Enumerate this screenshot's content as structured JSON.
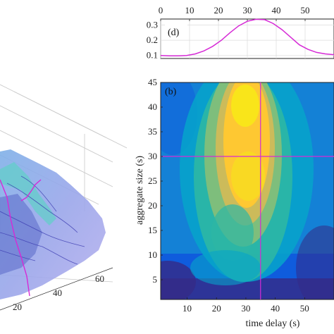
{
  "chart_data": [
    {
      "type": "line",
      "panel_label": "(d)",
      "x_ticks": [
        "0",
        "10",
        "20",
        "30",
        "40",
        "50"
      ],
      "y_ticks": [
        "0.1",
        "0.2",
        "0.3"
      ],
      "xlim": [
        0,
        60
      ],
      "ylim": [
        0.08,
        0.34
      ],
      "grid": true,
      "series": [
        {
          "color": "#d62ad6",
          "x": [
            0,
            3,
            6,
            9,
            12,
            15,
            18,
            21,
            24,
            27,
            30,
            33,
            36,
            39,
            42,
            45,
            48,
            51,
            54,
            57,
            60
          ],
          "values": [
            0.1,
            0.097,
            0.097,
            0.1,
            0.11,
            0.13,
            0.16,
            0.2,
            0.25,
            0.295,
            0.325,
            0.338,
            0.336,
            0.31,
            0.27,
            0.22,
            0.17,
            0.14,
            0.12,
            0.11,
            0.105
          ]
        }
      ]
    },
    {
      "type": "heatmap",
      "panel_label": "(b)",
      "xlabel": "time delay (s)",
      "ylabel": "aggregate size (s)",
      "x_ticks": [
        "10",
        "20",
        "30",
        "40",
        "50"
      ],
      "y_ticks": [
        "5",
        "10",
        "15",
        "20",
        "25",
        "30",
        "35",
        "40",
        "45"
      ],
      "xlim": [
        1,
        60
      ],
      "ylim": [
        1,
        45
      ],
      "crosshair": {
        "x": 35,
        "y": 30,
        "color": "#d62ad6"
      },
      "colormap": [
        "#352a87",
        "#0f5cdd",
        "#1481d6",
        "#06a4ca",
        "#2eb7a4",
        "#87bf77",
        "#d1bb59",
        "#fec832",
        "#f9fb0e"
      ]
    },
    {
      "type": "surface",
      "x_ticks": [
        "20",
        "40",
        "60"
      ],
      "line_color": "#d62ad6"
    }
  ]
}
